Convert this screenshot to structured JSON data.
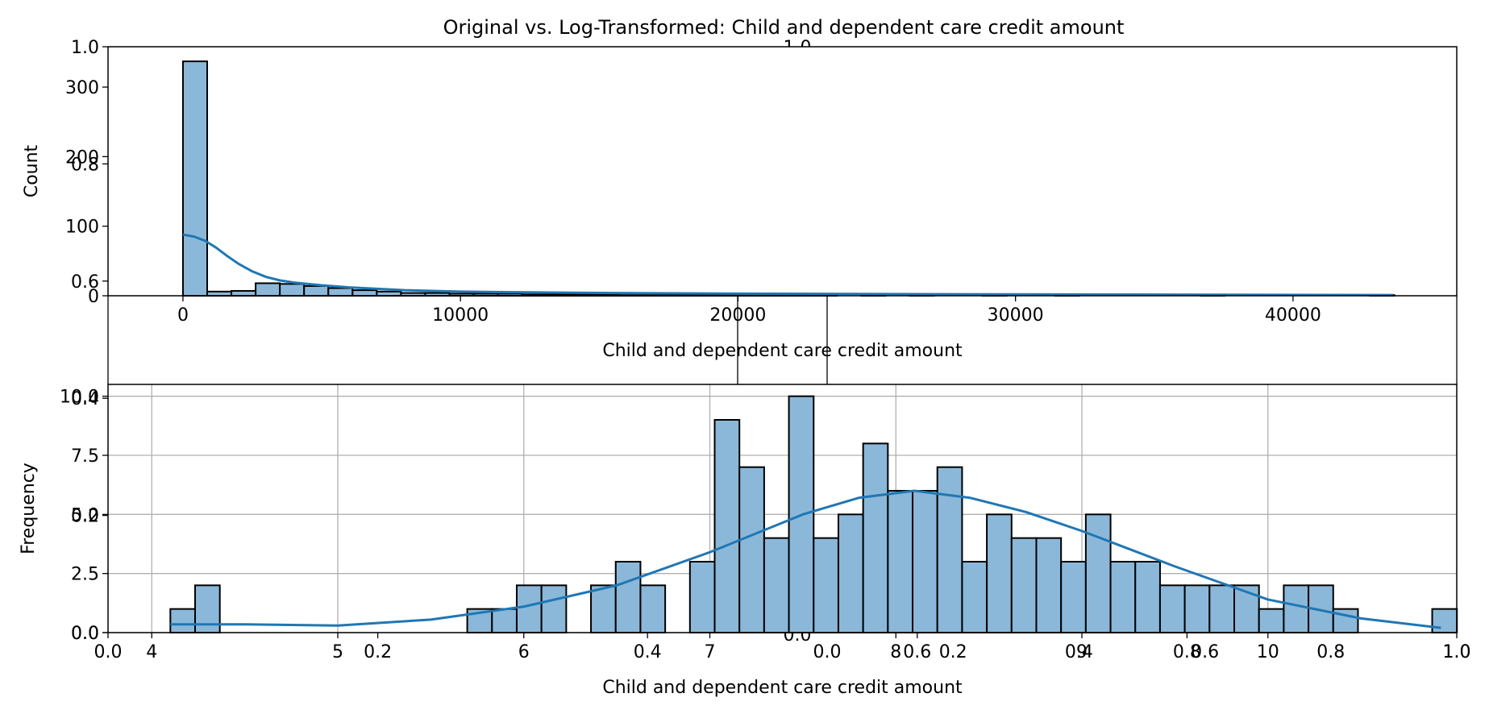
{
  "title": "Original vs. Log-Transformed: Child and dependent care credit amount",
  "background_axes": {
    "x_ticks": [
      "0.0",
      "0.2",
      "0.4",
      "0.6",
      "0.8",
      "1.0"
    ],
    "y_ticks": [
      "0.0",
      "0.2",
      "0.4",
      "0.6",
      "0.8",
      "1.0"
    ],
    "top_stray_label": "1.0",
    "bottom_stray_label": "0.0",
    "right_half_x_ticks": [
      "0.0",
      "0.2",
      "0.4",
      "0.6",
      "0.8",
      "1.0"
    ]
  },
  "chart_data": [
    {
      "type": "histogram",
      "title": "",
      "xlabel": "Child and dependent care credit amount",
      "ylabel": "Count",
      "xlim": [
        -2700,
        45900
      ],
      "ylim": [
        0,
        358
      ],
      "x_ticks": [
        0,
        10000,
        20000,
        30000,
        40000
      ],
      "x_tick_labels": [
        "0",
        "10000",
        "20000",
        "30000",
        "40000"
      ],
      "y_ticks": [
        0,
        100,
        200,
        300
      ],
      "y_tick_labels": [
        "0",
        "100",
        "200",
        "300"
      ],
      "grid": false,
      "bar_color": "#8bb8d9",
      "line_color": "#1f77b4",
      "bins": {
        "start": 0,
        "width": 873,
        "count": 50
      },
      "values": [
        337,
        6,
        7,
        18,
        17,
        14,
        11,
        8,
        6,
        4,
        4,
        3,
        3,
        3,
        2,
        2,
        2,
        2,
        1,
        1,
        1,
        1,
        1,
        1,
        1,
        1,
        1,
        0,
        1,
        0,
        1,
        0,
        0,
        1,
        0,
        0,
        1,
        0,
        0,
        0,
        0,
        0,
        1,
        0,
        0,
        0,
        0,
        0,
        0,
        1
      ],
      "kde": {
        "x": [
          0,
          400,
          800,
          1200,
          1600,
          2000,
          2500,
          3000,
          3500,
          4000,
          5000,
          6000,
          7000,
          8000,
          10000,
          12000,
          15000,
          20000,
          30000,
          43600
        ],
        "y": [
          88,
          85,
          79,
          69,
          57,
          46,
          35,
          27,
          22,
          19,
          15,
          12,
          10,
          8,
          6,
          5,
          4,
          3,
          2,
          1
        ]
      }
    },
    {
      "type": "histogram",
      "title": "",
      "xlabel": "Child and dependent care credit amount",
      "ylabel": "Frequency",
      "xlim": [
        3.765,
        11.015
      ],
      "ylim": [
        0,
        10.5
      ],
      "x_ticks": [
        4,
        5,
        6,
        7,
        8,
        9,
        10
      ],
      "x_tick_labels": [
        "4",
        "5",
        "6",
        "7",
        "8",
        "9",
        "10"
      ],
      "y_ticks": [
        0,
        2.5,
        5,
        7.5,
        10
      ],
      "y_tick_labels": [
        "0.0",
        "2.5",
        "5.0",
        "7.5",
        "10.0"
      ],
      "grid": true,
      "bar_color": "#8bb8d9",
      "line_color": "#1f77b4",
      "bins": {
        "start": 4.1,
        "width": 0.133,
        "count": 52
      },
      "values": [
        1,
        2,
        0,
        0,
        0,
        0,
        0,
        0,
        0,
        0,
        0,
        0,
        1,
        1,
        2,
        2,
        0,
        2,
        3,
        2,
        0,
        3,
        9,
        7,
        4,
        10,
        4,
        5,
        8,
        6,
        6,
        7,
        3,
        5,
        4,
        4,
        3,
        5,
        3,
        3,
        2,
        2,
        2,
        2,
        1,
        2,
        2,
        1,
        0,
        0,
        0,
        1
      ],
      "kde": {
        "x": [
          4.1,
          4.5,
          5.0,
          5.5,
          6.0,
          6.5,
          7.0,
          7.5,
          7.8,
          8.1,
          8.4,
          8.7,
          9.0,
          9.5,
          10.0,
          10.5,
          10.93
        ],
        "y": [
          0.35,
          0.35,
          0.3,
          0.55,
          1.1,
          2.0,
          3.4,
          5.0,
          5.7,
          6.0,
          5.7,
          5.1,
          4.3,
          2.8,
          1.4,
          0.6,
          0.2
        ]
      }
    }
  ]
}
